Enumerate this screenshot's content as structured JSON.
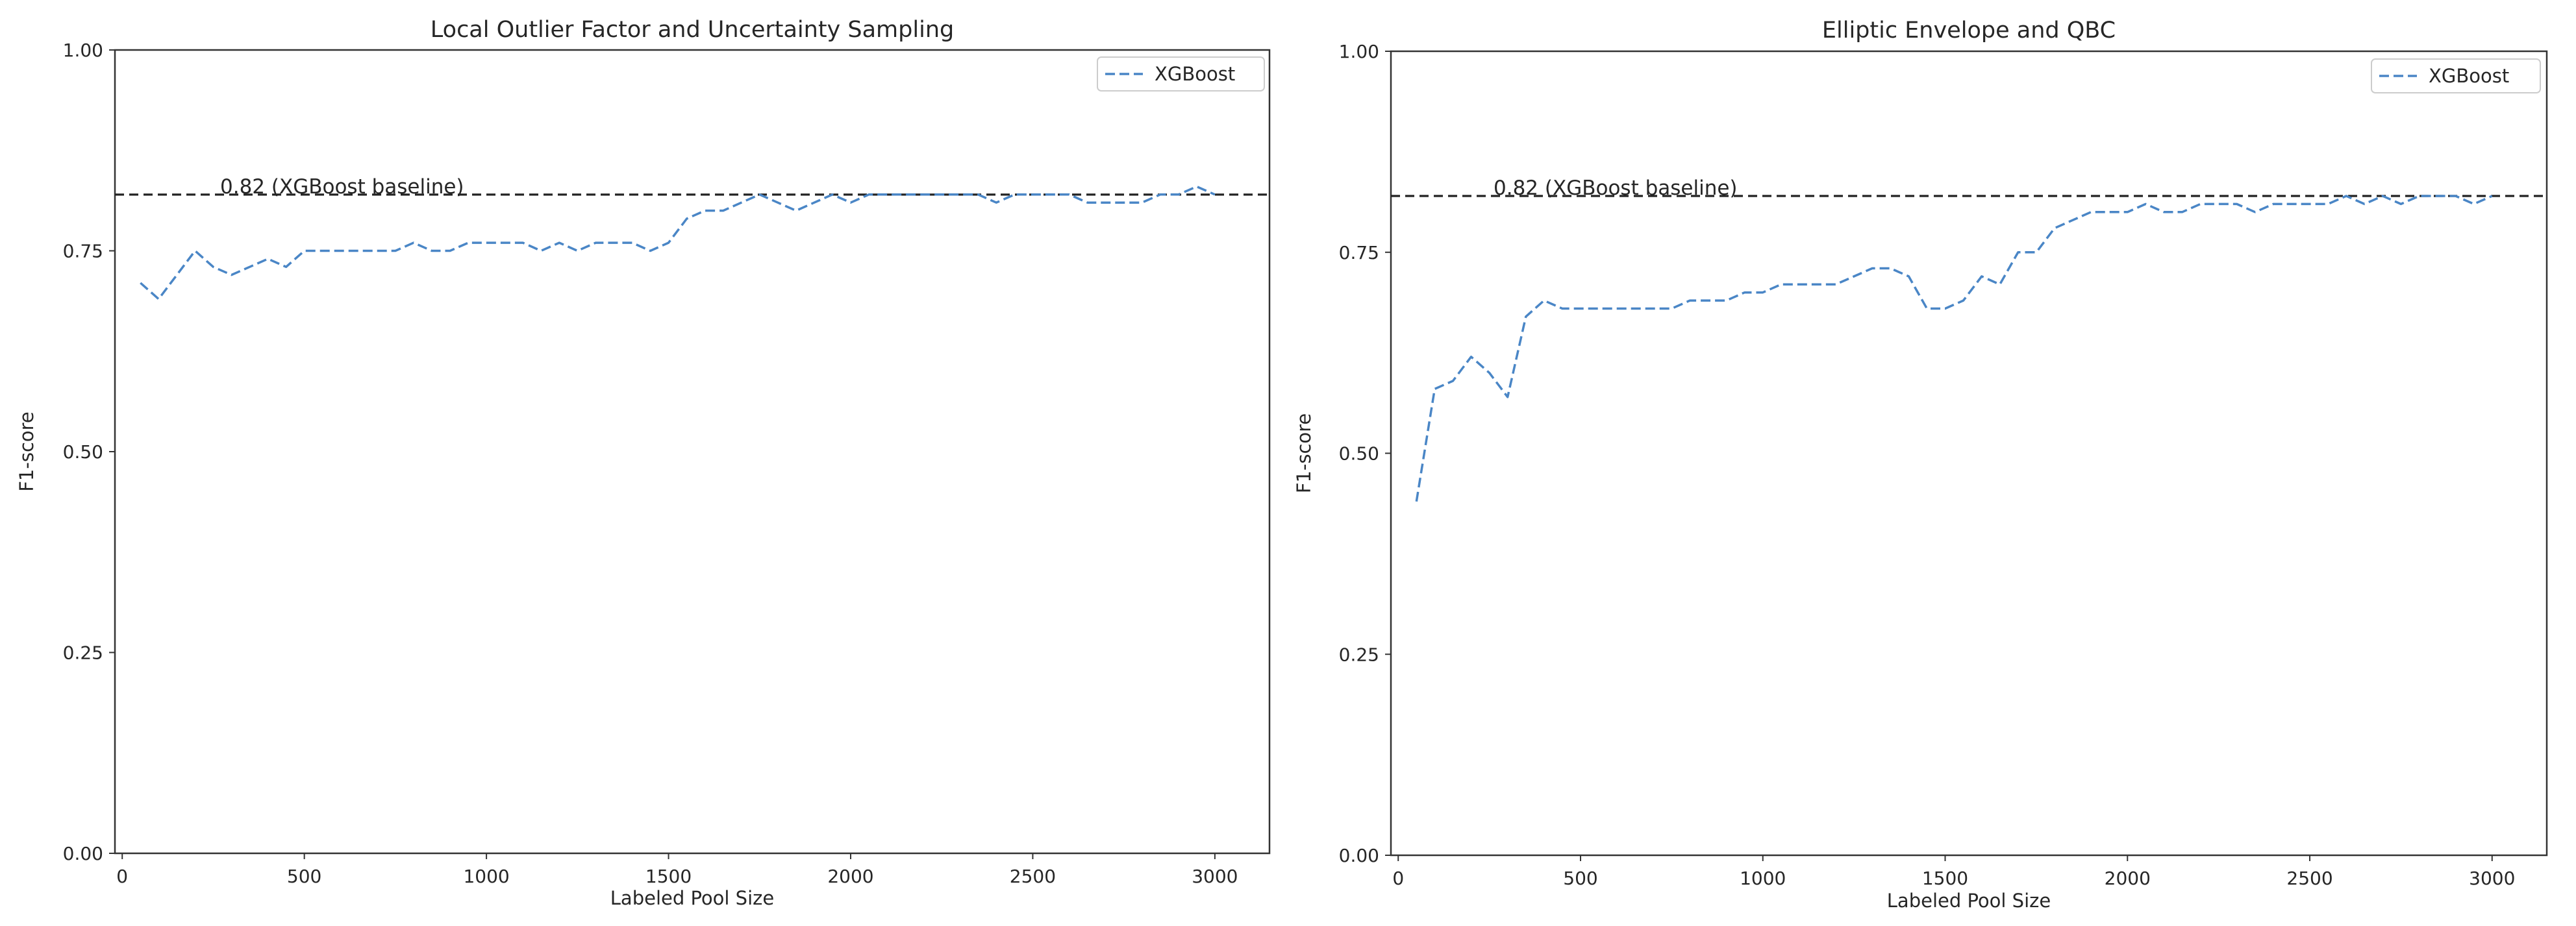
{
  "chart_data": [
    {
      "type": "line",
      "title": "Local Outlier Factor and Uncertainty Sampling",
      "xlabel": "Labeled Pool Size",
      "ylabel": "F1-score",
      "xlim": [
        -20,
        3150
      ],
      "ylim": [
        0,
        1
      ],
      "xticks": [
        0,
        500,
        1000,
        1500,
        2000,
        2500,
        3000
      ],
      "yticks": [
        0.0,
        0.25,
        0.5,
        0.75,
        1.0
      ],
      "xtick_labels": [
        "0",
        "500",
        "1000",
        "1500",
        "2000",
        "2500",
        "3000"
      ],
      "ytick_labels": [
        "0.00",
        "0.25",
        "0.50",
        "0.75",
        "1.00"
      ],
      "grid": false,
      "legend_position": "top-right",
      "series": [
        {
          "name": "XGBoost",
          "color": "#4a86c6",
          "style": "dashed",
          "x": [
            50,
            100,
            150,
            200,
            250,
            300,
            350,
            400,
            450,
            500,
            550,
            600,
            650,
            700,
            750,
            800,
            850,
            900,
            950,
            1000,
            1050,
            1100,
            1150,
            1200,
            1250,
            1300,
            1350,
            1400,
            1450,
            1500,
            1550,
            1600,
            1650,
            1700,
            1750,
            1800,
            1850,
            1900,
            1950,
            2000,
            2050,
            2100,
            2150,
            2200,
            2250,
            2300,
            2350,
            2400,
            2450,
            2500,
            2550,
            2600,
            2650,
            2700,
            2750,
            2800,
            2850,
            2900,
            2950,
            3000
          ],
          "y": [
            0.71,
            0.69,
            0.72,
            0.75,
            0.73,
            0.72,
            0.73,
            0.74,
            0.73,
            0.75,
            0.75,
            0.75,
            0.75,
            0.75,
            0.75,
            0.76,
            0.75,
            0.75,
            0.76,
            0.76,
            0.76,
            0.76,
            0.75,
            0.76,
            0.75,
            0.76,
            0.76,
            0.76,
            0.75,
            0.76,
            0.79,
            0.8,
            0.8,
            0.81,
            0.82,
            0.81,
            0.8,
            0.81,
            0.82,
            0.81,
            0.82,
            0.82,
            0.82,
            0.82,
            0.82,
            0.82,
            0.82,
            0.81,
            0.82,
            0.82,
            0.82,
            0.82,
            0.81,
            0.81,
            0.81,
            0.81,
            0.82,
            0.82,
            0.83,
            0.82
          ]
        }
      ],
      "baseline": {
        "value": 0.82,
        "label": "0.82 (XGBoost baseline)",
        "color": "#222222",
        "style": "dashed"
      }
    },
    {
      "type": "line",
      "title": "Elliptic Envelope and QBC",
      "xlabel": "Labeled Pool Size",
      "ylabel": "F1-score",
      "xlim": [
        -20,
        3150
      ],
      "ylim": [
        0,
        1
      ],
      "xticks": [
        0,
        500,
        1000,
        1500,
        2000,
        2500,
        3000
      ],
      "yticks": [
        0.0,
        0.25,
        0.5,
        0.75,
        1.0
      ],
      "xtick_labels": [
        "0",
        "500",
        "1000",
        "1500",
        "2000",
        "2500",
        "3000"
      ],
      "ytick_labels": [
        "0.00",
        "0.25",
        "0.50",
        "0.75",
        "1.00"
      ],
      "grid": false,
      "legend_position": "top-right",
      "series": [
        {
          "name": "XGBoost",
          "color": "#4a86c6",
          "style": "dashed",
          "x": [
            50,
            100,
            150,
            200,
            250,
            300,
            350,
            400,
            450,
            500,
            550,
            600,
            650,
            700,
            750,
            800,
            850,
            900,
            950,
            1000,
            1050,
            1100,
            1150,
            1200,
            1250,
            1300,
            1350,
            1400,
            1450,
            1500,
            1550,
            1600,
            1650,
            1700,
            1750,
            1800,
            1850,
            1900,
            1950,
            2000,
            2050,
            2100,
            2150,
            2200,
            2250,
            2300,
            2350,
            2400,
            2450,
            2500,
            2550,
            2600,
            2650,
            2700,
            2750,
            2800,
            2850,
            2900,
            2950,
            3000
          ],
          "y": [
            0.44,
            0.58,
            0.59,
            0.62,
            0.6,
            0.57,
            0.67,
            0.69,
            0.68,
            0.68,
            0.68,
            0.68,
            0.68,
            0.68,
            0.68,
            0.69,
            0.69,
            0.69,
            0.7,
            0.7,
            0.71,
            0.71,
            0.71,
            0.71,
            0.72,
            0.73,
            0.73,
            0.72,
            0.68,
            0.68,
            0.69,
            0.72,
            0.71,
            0.75,
            0.75,
            0.78,
            0.79,
            0.8,
            0.8,
            0.8,
            0.81,
            0.8,
            0.8,
            0.81,
            0.81,
            0.81,
            0.8,
            0.81,
            0.81,
            0.81,
            0.81,
            0.82,
            0.81,
            0.82,
            0.81,
            0.82,
            0.82,
            0.82,
            0.81,
            0.82
          ]
        }
      ],
      "baseline": {
        "value": 0.82,
        "label": "0.82 (XGBoost baseline)",
        "color": "#222222",
        "style": "dashed"
      }
    }
  ]
}
